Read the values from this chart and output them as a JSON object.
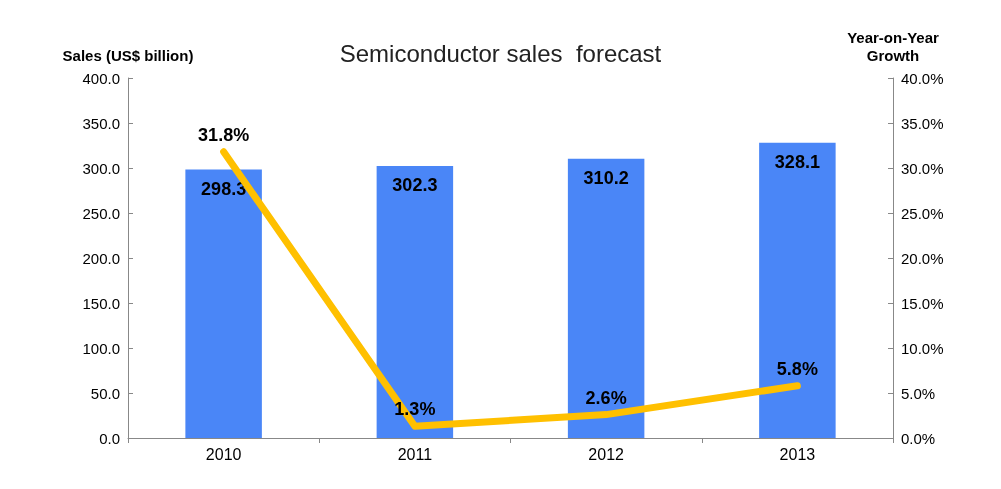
{
  "chart_data": {
    "type": "bar",
    "title": "Semiconductor sales  forecast",
    "ylabel": "Sales (US$ billion)",
    "y2label": "Year-on-Year Growth",
    "categories": [
      "2010",
      "2011",
      "2012",
      "2013"
    ],
    "series": [
      {
        "color": "#4a86f7",
        "values": [
          298.3,
          302.3,
          310.2,
          328.1
        ],
        "value_labels": [
          "298.3",
          "302.3",
          "310.2",
          "328.1"
        ]
      },
      {
        "type": "line",
        "axis": "y2",
        "color": "#ffc000",
        "values": [
          31.8,
          1.3,
          2.6,
          5.8
        ],
        "value_labels": [
          "31.8%",
          "1.3%",
          "2.6%",
          "5.8%"
        ]
      }
    ],
    "ylim": [
      0,
      400
    ],
    "yticks": [
      {
        "value": 0,
        "label": "0.0"
      },
      {
        "value": 50,
        "label": "50.0"
      },
      {
        "value": 100,
        "label": "100.0"
      },
      {
        "value": 150,
        "label": "150.0"
      },
      {
        "value": 200,
        "label": "200.0"
      },
      {
        "value": 250,
        "label": "250.0"
      },
      {
        "value": 300,
        "label": "300.0"
      },
      {
        "value": 350,
        "label": "350.0"
      },
      {
        "value": 400,
        "label": "400.0"
      }
    ],
    "y2lim": [
      0,
      40
    ],
    "y2ticks": [
      {
        "value": 0,
        "label": "0.0%"
      },
      {
        "value": 5,
        "label": "5.0%"
      },
      {
        "value": 10,
        "label": "10.0%"
      },
      {
        "value": 15,
        "label": "15.0%"
      },
      {
        "value": 20,
        "label": "20.0%"
      },
      {
        "value": 25,
        "label": "25.0%"
      },
      {
        "value": 30,
        "label": "30.0%"
      },
      {
        "value": 35,
        "label": "35.0%"
      },
      {
        "value": 40,
        "label": "40.0%"
      }
    ],
    "grid": false,
    "marker": "none",
    "line_style": "solid"
  }
}
